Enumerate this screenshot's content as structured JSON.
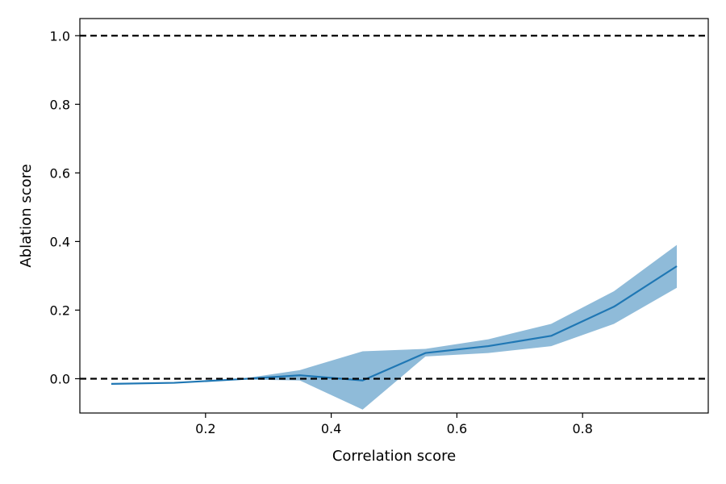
{
  "chart_data": {
    "type": "line",
    "title": "",
    "xlabel": "Correlation score",
    "ylabel": "Ablation score",
    "xlim": [
      0.0,
      1.0
    ],
    "ylim": [
      -0.1,
      1.05
    ],
    "xticks": [
      0.2,
      0.4,
      0.6,
      0.8
    ],
    "xtick_labels": [
      "0.2",
      "0.4",
      "0.6",
      "0.8"
    ],
    "yticks": [
      0.0,
      0.2,
      0.4,
      0.6,
      0.8,
      1.0
    ],
    "ytick_labels": [
      "0.0",
      "0.2",
      "0.4",
      "0.6",
      "0.8",
      "1.0"
    ],
    "grid": false,
    "legend": "none",
    "series": [
      {
        "x": [
          0.05,
          0.15,
          0.25,
          0.35,
          0.45,
          0.55,
          0.65,
          0.75,
          0.85,
          0.95
        ],
        "values": [
          -0.015,
          -0.012,
          -0.002,
          0.01,
          -0.005,
          0.075,
          0.095,
          0.125,
          0.21,
          0.328
        ],
        "band_lower": [
          -0.015,
          -0.012,
          -0.002,
          -0.005,
          -0.09,
          0.065,
          0.075,
          0.095,
          0.16,
          0.265
        ],
        "band_upper": [
          -0.015,
          -0.012,
          -0.002,
          0.025,
          0.08,
          0.087,
          0.115,
          0.16,
          0.255,
          0.39
        ],
        "color": "#1f77b4",
        "band_color": "#1f77b4"
      }
    ],
    "reference_lines": [
      {
        "y": 1.0,
        "style": "dashed",
        "color": "#000000"
      },
      {
        "y": 0.0,
        "style": "dashed",
        "color": "#000000"
      }
    ]
  }
}
